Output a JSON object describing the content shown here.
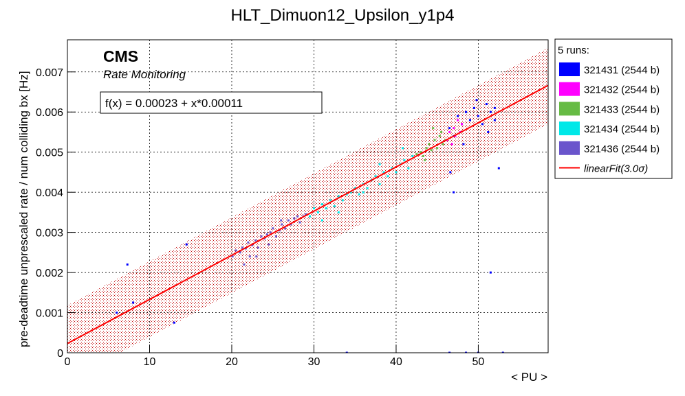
{
  "chart_data": {
    "type": "scatter",
    "title": "HLT_Dimuon12_Upsilon_y1p4",
    "x_label": "< PU >",
    "y_label": "pre-deadtime unprescaled rate / num colliding bx [Hz]",
    "brand": "CMS",
    "subtitle": "Rate Monitoring",
    "fit_text": "f(x) = 0.00023 + x*0.00011",
    "legend_title": "5 runs:",
    "xlim": [
      0,
      58.5
    ],
    "ylim": [
      0,
      0.0078
    ],
    "xticks": [
      0,
      10,
      20,
      30,
      40,
      50
    ],
    "yticks": [
      0,
      0.001,
      0.002,
      0.003,
      0.004,
      0.005,
      0.006,
      0.007
    ],
    "grid": true,
    "series": [
      {
        "name": "321431 (2544 b)",
        "color": "#0000ff",
        "x": [
          46.5,
          47,
          47.5,
          48,
          48.5,
          49,
          49.5,
          50,
          50.5,
          51,
          51.5,
          52,
          48.2,
          49.8,
          51.2,
          6,
          7.3,
          8,
          13,
          14.5,
          47,
          51.5,
          52.5,
          34,
          46.5,
          48.5,
          50,
          53,
          46.6,
          52
        ],
        "values": [
          0.0056,
          0.0054,
          0.0059,
          0.0057,
          0.006,
          0.0058,
          0.0061,
          0.0059,
          0.0057,
          0.0062,
          0.006,
          0.0058,
          0.0052,
          0.0063,
          0.0055,
          0.001,
          0.0022,
          0.00125,
          0.00075,
          0.0027,
          0.004,
          0.002,
          0.0046,
          0,
          0,
          0,
          0,
          0,
          0.0045,
          0.0061
        ]
      },
      {
        "name": "321432 (2544 b)",
        "color": "#ff00ff",
        "x": [
          46.2,
          46.5,
          46.8,
          47,
          47.2,
          47.5,
          47.8,
          48
        ],
        "values": [
          0.0053,
          0.0055,
          0.0052,
          0.0056,
          0.0054,
          0.0058,
          0.0055,
          0.0057
        ]
      },
      {
        "name": "321433 (2544 b)",
        "color": "#66bb44",
        "x": [
          42.5,
          43,
          43.3,
          43.7,
          44,
          44.3,
          44.7,
          45,
          45.3,
          45.7,
          46,
          43.5,
          44.5,
          45.5
        ],
        "values": [
          0.00495,
          0.005,
          0.0049,
          0.0051,
          0.0052,
          0.00505,
          0.0053,
          0.0051,
          0.0054,
          0.0052,
          0.0053,
          0.0048,
          0.0056,
          0.0055
        ]
      },
      {
        "name": "321434 (2544 b)",
        "color": "#00e8e8",
        "x": [
          29.5,
          30,
          30.5,
          31,
          31.5,
          32,
          32.5,
          33,
          33.5,
          34,
          34.5,
          35,
          35.5,
          36,
          36.5,
          37,
          37.5,
          38,
          38.5,
          39,
          39.5,
          40,
          40.5,
          41,
          41.5,
          42,
          31,
          33,
          36,
          38,
          40.8
        ],
        "values": [
          0.0034,
          0.0036,
          0.0035,
          0.0037,
          0.0036,
          0.0038,
          0.00365,
          0.0039,
          0.0038,
          0.00395,
          0.004,
          0.0041,
          0.00395,
          0.0042,
          0.0041,
          0.0043,
          0.0044,
          0.0042,
          0.0045,
          0.0044,
          0.0046,
          0.0045,
          0.0047,
          0.0048,
          0.0046,
          0.0049,
          0.0033,
          0.0035,
          0.004,
          0.0047,
          0.0051
        ]
      },
      {
        "name": "321436 (2544 b)",
        "color": "#6a55cc",
        "x": [
          20.1,
          20.5,
          21,
          21.3,
          21.7,
          22,
          22.2,
          22.5,
          22.9,
          23.2,
          23.6,
          24,
          24.3,
          24.7,
          25,
          25.4,
          25.8,
          26.1,
          26.5,
          26.9,
          27.2,
          27.6,
          28,
          28.3,
          28.7,
          29,
          21.5,
          23,
          24.5,
          26
        ],
        "values": [
          0.0024,
          0.00255,
          0.0025,
          0.00262,
          0.0026,
          0.00275,
          0.0024,
          0.00268,
          0.0028,
          0.00262,
          0.0029,
          0.00285,
          0.00295,
          0.003,
          0.0031,
          0.0029,
          0.00305,
          0.0032,
          0.0031,
          0.0033,
          0.0032,
          0.00335,
          0.0034,
          0.00325,
          0.0034,
          0.00345,
          0.0022,
          0.0024,
          0.0027,
          0.0033
        ]
      }
    ],
    "fit": {
      "name": "linearFit(3.0σ)",
      "color": "#ff0000",
      "x": [
        0,
        58.5
      ],
      "values": [
        0.00023,
        0.006665
      ],
      "band_lower": [
        -0.0007,
        0.0057
      ],
      "band_upper": [
        0.00118,
        0.0076
      ]
    }
  }
}
